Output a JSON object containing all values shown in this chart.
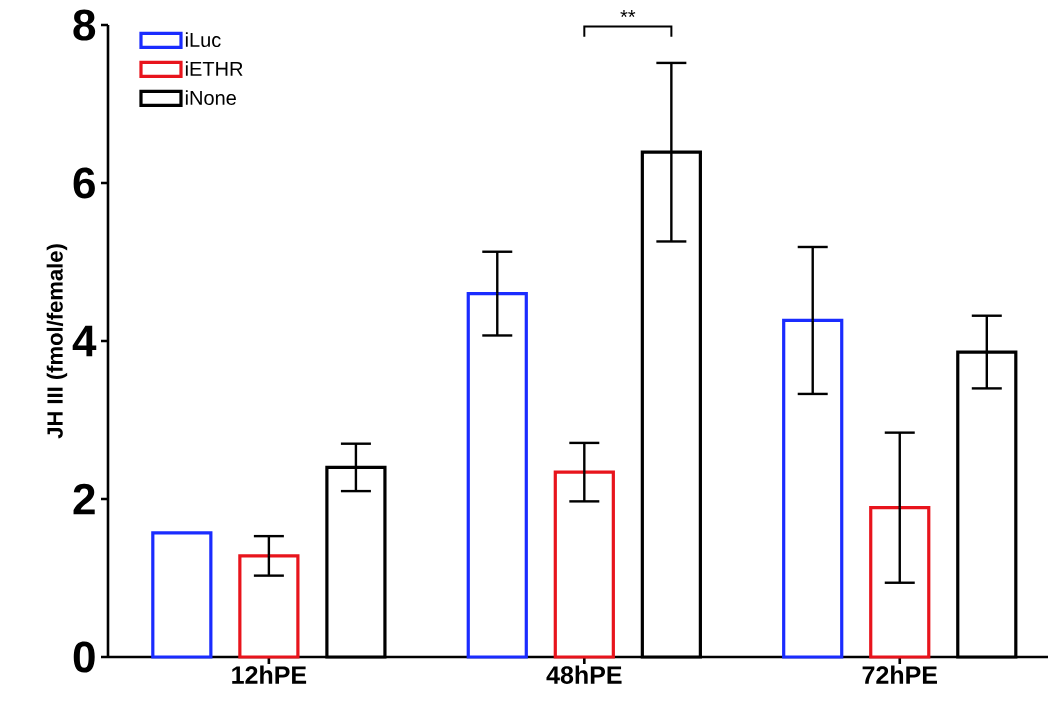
{
  "chart_data": {
    "type": "bar",
    "ylabel": "JH III (fmol/female)",
    "categories": [
      "12hPE",
      "48hPE",
      "72hPE"
    ],
    "series": [
      {
        "name": "iLuc",
        "color": "#1a2cff",
        "values": [
          1.57,
          4.6,
          4.26
        ],
        "errors": [
          null,
          0.53,
          0.93
        ]
      },
      {
        "name": "iETHR",
        "color": "#e8141c",
        "values": [
          1.28,
          2.34,
          1.89
        ],
        "errors": [
          0.25,
          0.37,
          0.95
        ]
      },
      {
        "name": "iNone",
        "color": "#000000",
        "values": [
          2.4,
          6.39,
          3.86
        ],
        "errors": [
          0.3,
          1.13,
          0.46
        ]
      }
    ],
    "ylim": [
      0,
      8
    ],
    "yticks": [
      0,
      2,
      4,
      6,
      8
    ],
    "legend": "top left",
    "annotations": [
      "**"
    ]
  }
}
